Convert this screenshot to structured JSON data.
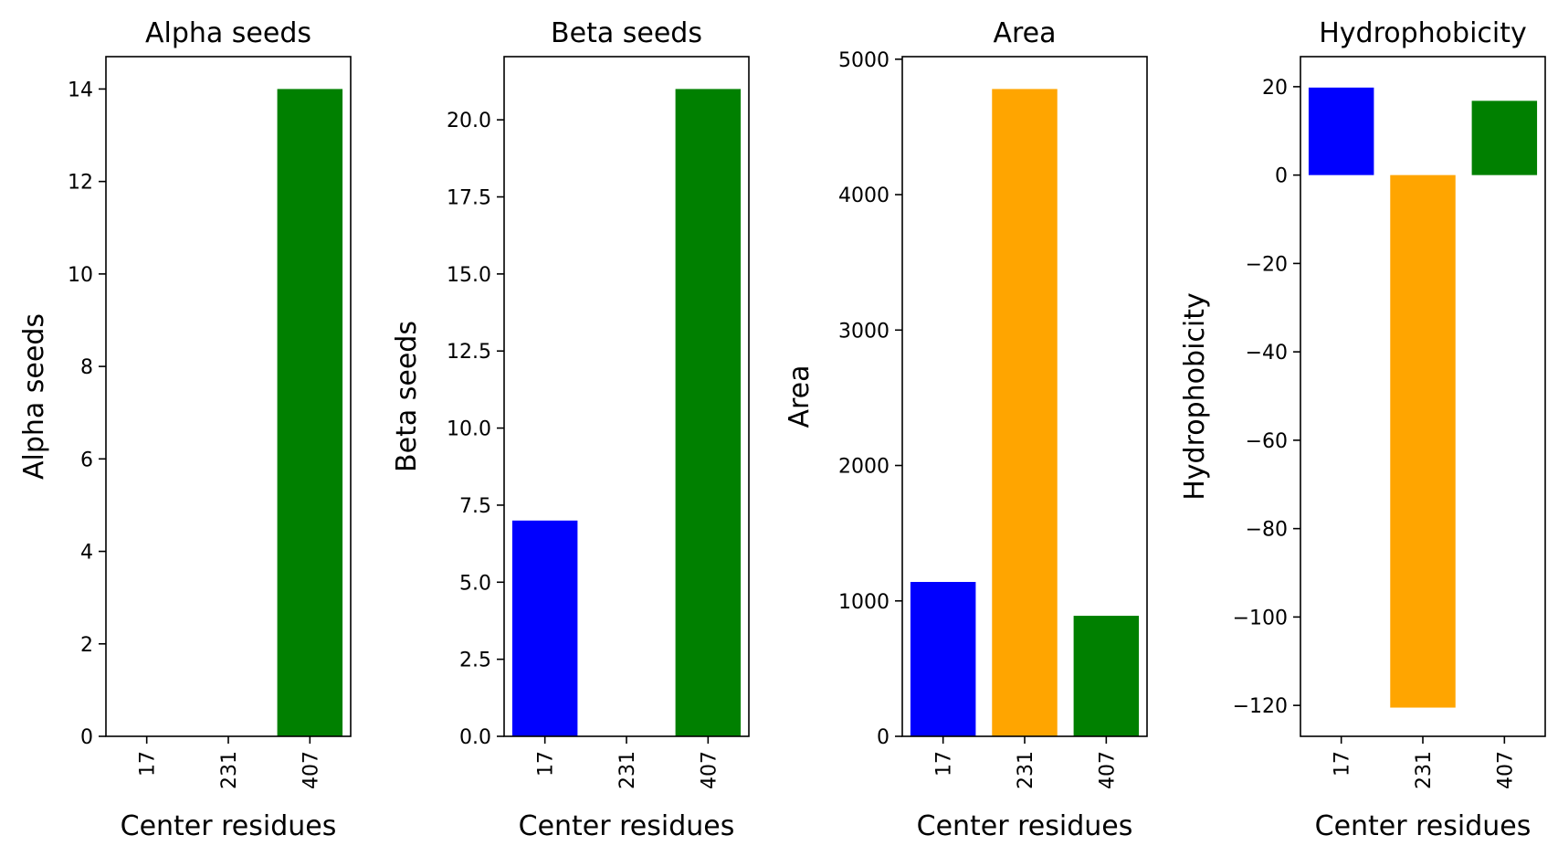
{
  "chart_data": [
    {
      "type": "bar",
      "title": "Alpha seeds",
      "xlabel": "Center residues",
      "ylabel": "Alpha seeds",
      "categories": [
        "17",
        "231",
        "407"
      ],
      "values": [
        0,
        0,
        14
      ],
      "colors": [
        "#0000ff",
        "#ffa500",
        "#008000"
      ],
      "ylim": [
        0,
        14.7
      ],
      "yticks": [
        0,
        2,
        4,
        6,
        8,
        10,
        12,
        14
      ],
      "ytick_labels": [
        "0",
        "2",
        "4",
        "6",
        "8",
        "10",
        "12",
        "14"
      ],
      "grid": false,
      "legend": "none"
    },
    {
      "type": "bar",
      "title": "Beta seeds",
      "xlabel": "Center residues",
      "ylabel": "Beta seeds",
      "categories": [
        "17",
        "231",
        "407"
      ],
      "values": [
        7,
        0,
        21
      ],
      "colors": [
        "#0000ff",
        "#ffa500",
        "#008000"
      ],
      "ylim": [
        0,
        22.05
      ],
      "yticks": [
        0,
        2.5,
        5,
        7.5,
        10,
        12.5,
        15,
        17.5,
        20
      ],
      "ytick_labels": [
        "0.0",
        "2.5",
        "5.0",
        "7.5",
        "10.0",
        "12.5",
        "15.0",
        "17.5",
        "20.0"
      ],
      "grid": false,
      "legend": "none"
    },
    {
      "type": "bar",
      "title": "Area",
      "xlabel": "Center residues",
      "ylabel": "Area",
      "categories": [
        "17",
        "231",
        "407"
      ],
      "values": [
        1140,
        4780,
        890
      ],
      "colors": [
        "#0000ff",
        "#ffa500",
        "#008000"
      ],
      "ylim": [
        0,
        5019
      ],
      "yticks": [
        0,
        1000,
        2000,
        3000,
        4000,
        5000
      ],
      "ytick_labels": [
        "0",
        "1000",
        "2000",
        "3000",
        "4000",
        "5000"
      ],
      "grid": false,
      "legend": "none"
    },
    {
      "type": "bar",
      "title": "Hydrophobicity",
      "xlabel": "Center residues",
      "ylabel": "Hydrophobicity",
      "categories": [
        "17",
        "231",
        "407"
      ],
      "values": [
        19.8,
        -120.5,
        16.8
      ],
      "colors": [
        "#0000ff",
        "#ffa500",
        "#008000"
      ],
      "ylim": [
        -127,
        26.8
      ],
      "yticks": [
        20,
        0,
        -20,
        -40,
        -60,
        -80,
        -100,
        -120
      ],
      "ytick_labels": [
        "20",
        "0",
        "−20",
        "−40",
        "−60",
        "−80",
        "−100",
        "−120"
      ],
      "grid": false,
      "legend": "none"
    }
  ]
}
